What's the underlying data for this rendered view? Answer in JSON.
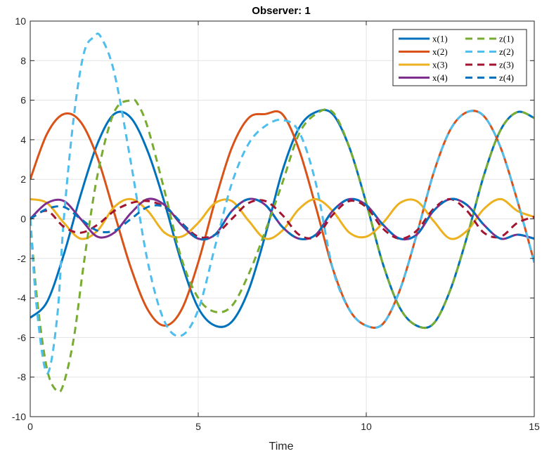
{
  "chart_data": {
    "type": "line",
    "title": "Observer: 1",
    "xlabel": "Time",
    "ylabel": "",
    "xlim": [
      0,
      15
    ],
    "ylim": [
      -10,
      10
    ],
    "xticks": [
      0,
      5,
      10,
      15
    ],
    "yticks": [
      -10,
      -8,
      -6,
      -4,
      -2,
      0,
      2,
      4,
      6,
      8,
      10
    ],
    "grid": true,
    "legend_position": "top-right",
    "legend_columns": 2,
    "colors": {
      "x1": "#0072BD",
      "x2": "#D95319",
      "x3": "#EDB120",
      "x4": "#7E2F8E",
      "z1": "#77AC30",
      "z2": "#4DBEEE",
      "z3": "#A2142F",
      "z4": "#0072BD"
    },
    "series": [
      {
        "name": "x(1)",
        "style": "solid",
        "color": "#0072BD",
        "x": [
          0,
          0.5,
          1,
          1.5,
          2,
          2.5,
          3,
          3.5,
          4,
          4.5,
          5,
          5.5,
          6,
          6.5,
          7,
          7.5,
          8,
          8.5,
          9,
          9.5,
          10,
          10.5,
          11,
          11.5,
          12,
          12.5,
          13,
          13.5,
          14,
          14.5,
          15
        ],
        "y": [
          -5,
          -4.2,
          -1.8,
          1.2,
          3.8,
          5.3,
          5.1,
          3.4,
          0.8,
          -2.2,
          -4.5,
          -5.4,
          -5.2,
          -3.6,
          -0.8,
          2.4,
          4.6,
          5.4,
          5.3,
          3.6,
          0.8,
          -2.3,
          -4.5,
          -5.4,
          -5.3,
          -3.6,
          -0.9,
          2.2,
          4.5,
          5.4,
          5.1
        ]
      },
      {
        "name": "x(2)",
        "style": "solid",
        "color": "#D95319",
        "x": [
          0,
          0.5,
          1,
          1.5,
          2,
          2.5,
          3,
          3.5,
          4,
          4.5,
          5,
          5.5,
          6,
          6.5,
          7,
          7.5,
          8,
          8.5,
          9,
          9.5,
          10,
          10.5,
          11,
          11.5,
          12,
          12.5,
          13,
          13.5,
          14,
          14.5,
          15
        ],
        "y": [
          2,
          4.3,
          5.3,
          4.9,
          3.1,
          0.3,
          -2.5,
          -4.6,
          -5.4,
          -4.6,
          -2.2,
          0.9,
          3.6,
          5.1,
          5.3,
          5.3,
          3.5,
          0.6,
          -2.5,
          -4.6,
          -5.4,
          -5.3,
          -3.6,
          -0.8,
          2.3,
          4.5,
          5.4,
          5.2,
          3.6,
          0.9,
          -2.2
        ]
      },
      {
        "name": "x(3)",
        "style": "solid",
        "color": "#EDB120",
        "x": [
          0,
          0.5,
          1,
          1.5,
          2,
          2.5,
          3,
          3.5,
          4,
          4.5,
          5,
          5.5,
          6,
          6.5,
          7,
          7.5,
          8,
          8.5,
          9,
          9.5,
          10,
          10.5,
          11,
          11.5,
          12,
          12.5,
          13,
          13.5,
          14,
          14.5,
          15
        ],
        "y": [
          1,
          0.8,
          -0.2,
          -1,
          -0.6,
          0.6,
          1,
          0.4,
          -0.7,
          -0.9,
          -0.2,
          0.8,
          0.9,
          -0.1,
          -1,
          -0.6,
          0.5,
          1,
          0.4,
          -0.7,
          -0.9,
          -0.2,
          0.8,
          0.9,
          -0.1,
          -1,
          -0.6,
          0.5,
          1,
          0.4,
          0.1
        ]
      },
      {
        "name": "x(4)",
        "style": "solid",
        "color": "#7E2F8E",
        "x": [
          0,
          0.5,
          1,
          1.5,
          2,
          2.5,
          3,
          3.5,
          4,
          4.5,
          5,
          5.5,
          6,
          6.5,
          7,
          7.5,
          8,
          8.5,
          9,
          9.5,
          10,
          10.5,
          11,
          11.5,
          12,
          12.5,
          13,
          13.5,
          14,
          14.5,
          15
        ],
        "y": [
          0,
          0.8,
          0.9,
          0,
          -0.9,
          -0.7,
          0.3,
          1,
          0.7,
          -0.3,
          -1,
          -0.8,
          0.4,
          1,
          0.7,
          -0.4,
          -1,
          -0.8,
          0.4,
          1,
          0.7,
          -0.3,
          -1,
          -0.8,
          0.4,
          1,
          0.7,
          -0.3,
          -1,
          -0.8,
          -1
        ]
      },
      {
        "name": "z(1)",
        "style": "dashed",
        "color": "#77AC30",
        "x": [
          0,
          0.2,
          0.5,
          0.8,
          1,
          1.3,
          1.6,
          2,
          2.5,
          3,
          3.2,
          3.5,
          4,
          4.5,
          5,
          5.5,
          6,
          6.5,
          7,
          7.5,
          8,
          8.5,
          9,
          9.5,
          10,
          10.5,
          11,
          11.5,
          12,
          12.5,
          13,
          13.5,
          14,
          14.5,
          15
        ],
        "y": [
          0,
          -4,
          -7.6,
          -8.7,
          -8.3,
          -6,
          -2.2,
          2.2,
          5.4,
          6,
          5.8,
          4.6,
          1.4,
          -2,
          -4,
          -4.7,
          -4.4,
          -2.8,
          -0.6,
          1.8,
          4.3,
          5.3,
          5.4,
          3.6,
          0.8,
          -2.3,
          -4.5,
          -5.4,
          -5.3,
          -3.6,
          -0.9,
          2.2,
          4.5,
          5.4,
          5.1
        ]
      },
      {
        "name": "z(2)",
        "style": "dashed",
        "color": "#4DBEEE",
        "x": [
          0,
          0.2,
          0.5,
          0.8,
          1,
          1.3,
          1.6,
          1.9,
          2.1,
          2.5,
          3,
          3.5,
          4,
          4.5,
          5,
          5.5,
          6,
          6.5,
          7,
          7.5,
          8,
          8.5,
          9,
          9.5,
          10,
          10.5,
          11,
          11.5,
          12,
          12.5,
          13,
          13.5,
          14,
          14.5,
          15
        ],
        "y": [
          0,
          -4.6,
          -7.8,
          -5,
          0,
          5.2,
          8.4,
          9.2,
          9.2,
          7.4,
          2.8,
          -2.2,
          -5.2,
          -5.9,
          -4.6,
          -1.4,
          1.8,
          3.8,
          4.7,
          5,
          4.4,
          1.8,
          -2.5,
          -4.6,
          -5.4,
          -5.3,
          -3.6,
          -0.8,
          2.3,
          4.5,
          5.4,
          5.2,
          3.6,
          0.9,
          -2.2
        ]
      },
      {
        "name": "z(3)",
        "style": "dashed",
        "color": "#A2142F",
        "x": [
          0,
          0.5,
          1,
          1.5,
          2,
          2.5,
          3,
          3.5,
          4,
          4.5,
          5,
          5.5,
          6,
          6.5,
          7,
          7.5,
          8,
          8.5,
          9,
          9.5,
          10,
          10.5,
          11,
          11.5,
          12,
          12.5,
          13,
          13.5,
          14,
          14.5,
          15
        ],
        "y": [
          0,
          0.4,
          -0.4,
          -0.7,
          -0.3,
          0.4,
          0.8,
          0.9,
          0.6,
          -0.2,
          -0.9,
          -0.8,
          0,
          0.8,
          0.9,
          0.2,
          -0.8,
          -0.9,
          0.2,
          0.9,
          0.6,
          -0.5,
          -1,
          -0.6,
          0.5,
          1,
          0.4,
          -0.7,
          -0.9,
          -0.2,
          0.1
        ]
      },
      {
        "name": "z(4)",
        "style": "dashed",
        "color": "#0072BD",
        "x": [
          0,
          0.5,
          1,
          1.5,
          2,
          2.5,
          3,
          3.5,
          4,
          4.5,
          5,
          5.5,
          6,
          6.5,
          7,
          7.5,
          8,
          8.5,
          9,
          9.5,
          10,
          10.5,
          11,
          11.5,
          12,
          12.5,
          13,
          13.5,
          14,
          14.5,
          15
        ],
        "y": [
          0,
          0.5,
          0.6,
          0,
          -0.6,
          -0.6,
          0,
          0.6,
          0.6,
          -0.2,
          -1,
          -0.8,
          0.4,
          1,
          0.7,
          -0.4,
          -1,
          -0.8,
          0.4,
          1,
          0.7,
          -0.3,
          -1,
          -0.8,
          0.4,
          1,
          0.7,
          -0.3,
          -1,
          -0.8,
          -1
        ]
      }
    ]
  }
}
